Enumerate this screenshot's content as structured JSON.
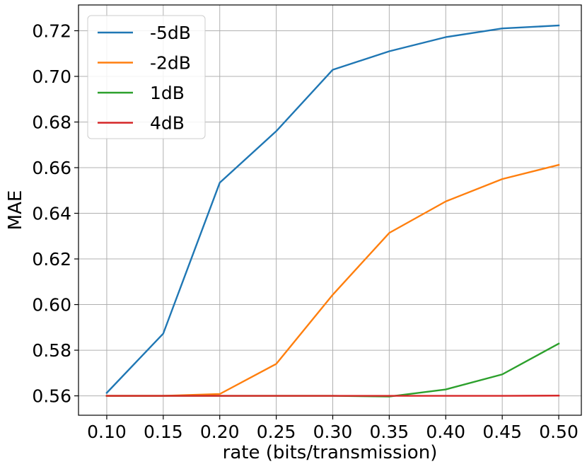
{
  "chart_data": {
    "type": "line",
    "title": "",
    "xlabel": "rate (bits/transmission)",
    "ylabel": "MAE",
    "x": [
      0.1,
      0.15,
      0.2,
      0.25,
      0.3,
      0.35,
      0.4,
      0.45,
      0.5
    ],
    "x_ticks": [
      "0.10",
      "0.15",
      "0.20",
      "0.25",
      "0.30",
      "0.35",
      "0.40",
      "0.45",
      "0.50"
    ],
    "y_ticks": [
      "0.56",
      "0.58",
      "0.60",
      "0.62",
      "0.64",
      "0.66",
      "0.68",
      "0.70",
      "0.72"
    ],
    "xlim": [
      0.075,
      0.52
    ],
    "ylim": [
      0.5515,
      0.7313
    ],
    "grid": true,
    "legend_position": "top-left",
    "series": [
      {
        "name": "-5dB",
        "color": "#1f77b4",
        "values": [
          0.5613,
          0.5873,
          0.6534,
          0.676,
          0.7029,
          0.711,
          0.7172,
          0.721,
          0.7223
        ]
      },
      {
        "name": "-2dB",
        "color": "#ff7f0e",
        "values": [
          0.56,
          0.56,
          0.5608,
          0.574,
          0.6043,
          0.6314,
          0.6452,
          0.655,
          0.6612
        ]
      },
      {
        "name": "1dB",
        "color": "#2ca02c",
        "values": [
          0.56,
          0.56,
          0.56,
          0.56,
          0.56,
          0.5597,
          0.5628,
          0.5694,
          0.5829
        ]
      },
      {
        "name": "4dB",
        "color": "#d62728",
        "values": [
          0.56,
          0.56,
          0.56,
          0.56,
          0.56,
          0.56,
          0.56,
          0.56,
          0.5601
        ]
      }
    ]
  }
}
